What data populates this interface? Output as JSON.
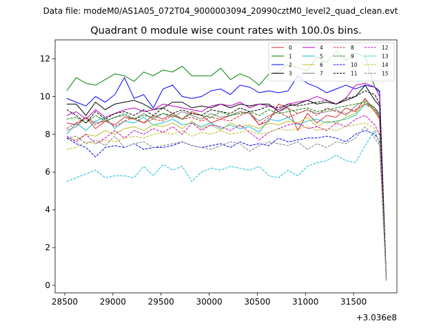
{
  "figure": {
    "suptitle": "Data file: modeM0/AS1A05_072T04_9000003094_20990cztM0_level2_quad_clean.evt",
    "offset_label": "+3.036e8"
  },
  "chart_data": {
    "type": "line",
    "title": "Quadrant 0 module wise count rates with 100.0s bins.",
    "xlabel": "",
    "ylabel": "",
    "x_offset": 303600000,
    "xlim": [
      28400,
      31950
    ],
    "ylim": [
      -0.4,
      13.0
    ],
    "x_ticks": [
      28500,
      29000,
      29500,
      30000,
      30500,
      31000,
      31500
    ],
    "y_ticks": [
      0,
      2,
      4,
      6,
      8,
      10,
      12
    ],
    "grid": false,
    "legend": {
      "location": "top-right",
      "columns": 4
    },
    "x": [
      28520,
      28620,
      28720,
      28820,
      28920,
      29020,
      29120,
      29220,
      29320,
      29420,
      29520,
      29620,
      29720,
      29820,
      29920,
      30020,
      30120,
      30220,
      30320,
      30420,
      30520,
      30620,
      30720,
      30820,
      30920,
      31020,
      31120,
      31220,
      31320,
      31420,
      31520,
      31620,
      31720,
      31770,
      31840
    ],
    "series": [
      {
        "name": "0",
        "color": "#d62728",
        "dash": "solid",
        "values": [
          8.6,
          8.5,
          8.9,
          8.3,
          8.7,
          8.5,
          8.9,
          8.8,
          8.6,
          9.0,
          8.8,
          9.1,
          8.8,
          9.2,
          9.0,
          8.6,
          8.8,
          9.0,
          9.2,
          9.1,
          8.5,
          8.7,
          9.6,
          9.4,
          8.2,
          9.1,
          8.6,
          9.0,
          8.9,
          9.4,
          9.2,
          9.9,
          9.2,
          8.8,
          0.25
        ]
      },
      {
        "name": "1",
        "color": "#008000",
        "dash": "solid",
        "values": [
          10.3,
          11.0,
          10.7,
          10.6,
          10.9,
          11.2,
          11.1,
          10.8,
          11.3,
          11.1,
          11.4,
          11.3,
          11.6,
          11.1,
          11.1,
          11.1,
          11.5,
          10.9,
          11.2,
          11.0,
          10.6,
          11.2,
          11.3,
          11.7,
          11.5,
          11.4,
          12.1,
          11.8,
          12.4,
          11.9,
          12.3,
          12.1,
          10.5,
          10.2,
          0.3
        ]
      },
      {
        "name": "2",
        "color": "#0000ff",
        "dash": "solid",
        "values": [
          9.9,
          9.7,
          9.5,
          10.0,
          9.7,
          10.1,
          11.0,
          9.9,
          10.1,
          9.4,
          10.4,
          10.6,
          10.0,
          9.9,
          10.0,
          10.3,
          10.4,
          10.1,
          10.6,
          10.5,
          10.2,
          10.3,
          10.2,
          10.3,
          11.1,
          10.7,
          10.5,
          10.2,
          10.4,
          10.6,
          10.4,
          10.6,
          10.5,
          10.3,
          0.35
        ]
      },
      {
        "name": "3",
        "color": "#000000",
        "dash": "solid",
        "values": [
          9.6,
          9.6,
          9.0,
          9.7,
          9.3,
          9.6,
          9.7,
          9.8,
          9.6,
          9.3,
          9.4,
          9.7,
          9.7,
          9.4,
          9.5,
          9.4,
          9.6,
          9.4,
          9.6,
          9.5,
          9.6,
          9.6,
          9.2,
          9.5,
          9.6,
          9.8,
          9.6,
          9.7,
          9.6,
          9.8,
          10.0,
          10.6,
          9.8,
          9.5,
          0.3
        ]
      },
      {
        "name": "4",
        "color": "#bf00bf",
        "dash": "solid",
        "values": [
          9.0,
          9.2,
          8.8,
          9.3,
          8.9,
          9.1,
          9.3,
          9.4,
          9.2,
          9.3,
          9.6,
          9.5,
          9.4,
          9.3,
          9.2,
          9.5,
          9.6,
          9.5,
          9.7,
          9.4,
          9.6,
          9.5,
          9.3,
          9.6,
          9.7,
          9.8,
          10.0,
          9.8,
          9.6,
          9.9,
          10.6,
          10.7,
          10.5,
          10.0,
          0.3
        ]
      },
      {
        "name": "5",
        "color": "#17becf",
        "dash": "solid",
        "values": [
          8.0,
          8.6,
          8.2,
          8.7,
          8.9,
          8.3,
          8.7,
          8.6,
          8.9,
          8.5,
          8.6,
          8.8,
          8.5,
          8.6,
          8.4,
          8.6,
          8.3,
          8.5,
          8.3,
          8.4,
          8.1,
          8.8,
          8.7,
          8.9,
          8.5,
          8.7,
          8.8,
          8.6,
          8.7,
          8.8,
          9.0,
          9.6,
          9.4,
          9.1,
          0.3
        ]
      },
      {
        "name": "6",
        "color": "#bcbd22",
        "dash": "solid",
        "values": [
          7.8,
          7.7,
          8.0,
          7.9,
          8.2,
          8.0,
          8.3,
          8.4,
          8.2,
          8.5,
          8.4,
          8.6,
          8.3,
          8.7,
          8.3,
          8.5,
          8.2,
          8.6,
          8.4,
          8.5,
          8.3,
          8.6,
          8.5,
          8.7,
          8.6,
          8.9,
          8.4,
          8.7,
          8.6,
          8.9,
          9.1,
          9.7,
          9.3,
          8.9,
          0.3
        ]
      },
      {
        "name": "7",
        "color": "#7f7f7f",
        "dash": "solid",
        "values": [
          8.2,
          8.4,
          8.9,
          8.6,
          8.7,
          8.9,
          9.0,
          8.8,
          9.1,
          8.8,
          9.1,
          8.9,
          9.2,
          9.0,
          8.8,
          9.1,
          8.9,
          9.0,
          9.2,
          9.1,
          8.7,
          9.0,
          9.2,
          9.4,
          9.1,
          9.3,
          9.1,
          9.2,
          9.3,
          9.0,
          9.5,
          9.8,
          9.4,
          9.0,
          0.3
        ]
      },
      {
        "name": "8",
        "color": "#d62728",
        "dash": "dashed",
        "values": [
          8.3,
          8.6,
          8.9,
          8.5,
          8.8,
          8.4,
          8.7,
          8.9,
          8.6,
          8.8,
          8.7,
          9.0,
          8.8,
          8.9,
          8.7,
          8.9,
          8.8,
          8.7,
          9.0,
          9.2,
          8.5,
          8.9,
          9.2,
          8.9,
          9.1,
          9.3,
          9.0,
          9.4,
          9.2,
          9.1,
          9.3,
          9.6,
          9.3,
          8.9,
          0.3
        ]
      },
      {
        "name": "9",
        "color": "#008000",
        "dash": "dashed",
        "values": [
          8.8,
          8.9,
          8.6,
          9.0,
          8.7,
          8.9,
          9.1,
          8.8,
          9.0,
          8.9,
          9.1,
          9.0,
          8.8,
          9.1,
          9.0,
          8.9,
          9.2,
          9.0,
          9.1,
          9.2,
          9.0,
          9.3,
          9.1,
          9.2,
          9.3,
          9.4,
          9.2,
          9.3,
          9.4,
          9.5,
          9.6,
          9.7,
          9.4,
          9.0,
          0.3
        ]
      },
      {
        "name": "10",
        "color": "#0000ff",
        "dash": "dashed",
        "values": [
          7.8,
          7.5,
          7.3,
          6.8,
          7.3,
          7.4,
          7.3,
          7.5,
          7.2,
          7.3,
          7.3,
          7.4,
          7.6,
          7.4,
          7.3,
          7.4,
          7.5,
          7.3,
          7.6,
          7.4,
          7.5,
          7.4,
          7.8,
          7.6,
          7.7,
          7.8,
          7.8,
          7.9,
          7.8,
          7.6,
          8.0,
          8.2,
          8.0,
          7.6,
          0.3
        ]
      },
      {
        "name": "11",
        "color": "#000000",
        "dash": "dashed",
        "values": [
          9.3,
          9.0,
          8.6,
          9.2,
          8.8,
          9.1,
          9.2,
          9.0,
          9.3,
          9.0,
          9.4,
          9.1,
          9.3,
          9.1,
          9.0,
          9.3,
          9.2,
          9.1,
          9.4,
          9.2,
          9.3,
          9.5,
          9.4,
          9.6,
          9.5,
          9.6,
          9.7,
          9.8,
          9.6,
          9.9,
          10.0,
          10.3,
          10.1,
          9.6,
          0.3
        ]
      },
      {
        "name": "12",
        "color": "#bf00bf",
        "dash": "dashed",
        "values": [
          7.9,
          7.6,
          8.0,
          7.5,
          7.8,
          8.2,
          7.8,
          8.2,
          8.0,
          8.3,
          8.1,
          8.4,
          8.0,
          8.6,
          8.2,
          8.5,
          8.4,
          8.2,
          8.5,
          8.1,
          7.7,
          8.1,
          8.3,
          8.5,
          8.6,
          8.3,
          8.4,
          8.2,
          8.6,
          8.4,
          8.8,
          9.0,
          8.5,
          8.0,
          0.3
        ]
      },
      {
        "name": "13",
        "color": "#17becf",
        "dash": "dashed",
        "values": [
          5.5,
          5.7,
          5.9,
          6.1,
          5.7,
          5.8,
          5.8,
          5.7,
          6.3,
          5.8,
          6.4,
          6.1,
          6.3,
          5.5,
          6.0,
          6.2,
          6.1,
          6.3,
          6.2,
          6.1,
          6.3,
          5.8,
          5.7,
          6.1,
          5.8,
          6.3,
          6.5,
          6.6,
          6.9,
          6.6,
          6.5,
          7.4,
          8.2,
          7.5,
          0.3
        ]
      },
      {
        "name": "14",
        "color": "#bcbd22",
        "dash": "dashed",
        "values": [
          7.2,
          7.3,
          7.6,
          7.5,
          7.7,
          7.6,
          7.8,
          7.9,
          7.8,
          8.0,
          8.1,
          8.0,
          8.2,
          7.9,
          8.1,
          8.0,
          8.2,
          8.0,
          8.1,
          8.2,
          8.0,
          8.1,
          8.3,
          8.2,
          8.3,
          8.4,
          8.2,
          8.3,
          8.2,
          8.4,
          8.5,
          8.6,
          8.3,
          7.9,
          0.3
        ]
      },
      {
        "name": "15",
        "color": "#7f7f7f",
        "dash": "dashed",
        "values": [
          7.8,
          7.9,
          7.5,
          7.7,
          7.4,
          7.9,
          7.3,
          7.5,
          7.6,
          7.3,
          7.4,
          7.5,
          7.6,
          7.4,
          7.3,
          7.2,
          7.4,
          7.6,
          7.5,
          7.1,
          7.4,
          7.6,
          7.5,
          7.4,
          7.6,
          7.2,
          7.5,
          7.3,
          7.6,
          7.5,
          7.8,
          8.4,
          7.8,
          7.4,
          0.3
        ]
      }
    ]
  }
}
